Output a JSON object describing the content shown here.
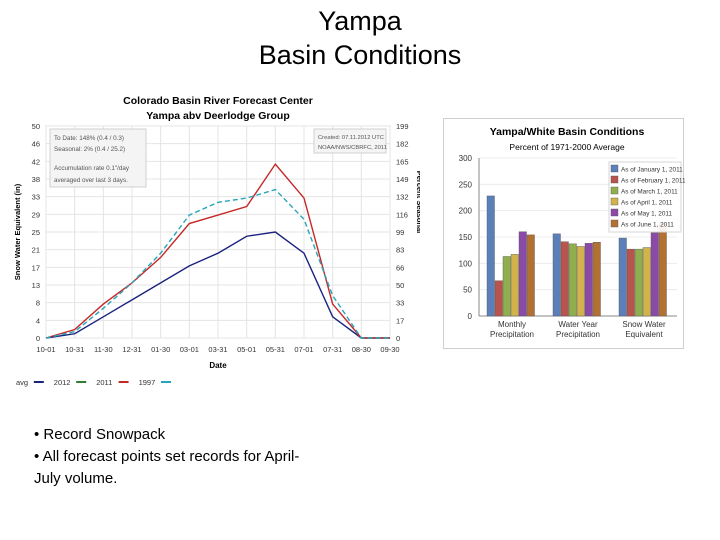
{
  "slide": {
    "title_line1": "Yampa",
    "title_line2": "Basin Conditions",
    "bullets": [
      "• Record Snowpack",
      "• All forecast points set records for April-",
      "July volume."
    ]
  },
  "chart_data": [
    {
      "type": "line",
      "title": "Colorado Basin River Forecast Center",
      "subtitle": "Yampa abv Deerlodge Group",
      "xlabel": "Date",
      "ylabel": "Snow Water Equivalent (in)",
      "y2label": "Percent Seasonal",
      "ylim": [
        0,
        50
      ],
      "y_ticks": [
        "0",
        "4",
        "8",
        "13",
        "17",
        "21",
        "25",
        "29",
        "33",
        "38",
        "42",
        "46",
        "50"
      ],
      "y2_ticks": [
        "0",
        "17",
        "33",
        "50",
        "66",
        "83",
        "99",
        "116",
        "132",
        "149",
        "165",
        "182",
        "199"
      ],
      "x_ticks": [
        "10-01",
        "10-31",
        "11-30",
        "12-31",
        "01-30",
        "03-01",
        "03-31",
        "05-01",
        "05-31",
        "07-01",
        "07-31",
        "08-30",
        "09-30"
      ],
      "info_left": [
        "To Date: 148% (0.4 / 0.3)",
        "Seasonal: 2% (0.4 / 25.2)",
        "Accumulation rate 0.1\"/day",
        "averaged over last 3 days."
      ],
      "info_right": [
        "Created: 07.11.2012 UTC",
        "NOAA/NWS/CBRFC, 2011"
      ],
      "legend": [
        "avg",
        "2012",
        "2011",
        "1997"
      ],
      "colors": {
        "avg": "#1a237e",
        "2011": "#c62828",
        "1997": "#26a6b8",
        "2012": "#2e7d32"
      },
      "x": [
        "10-01",
        "10-31",
        "11-30",
        "12-31",
        "01-30",
        "03-01",
        "03-31",
        "05-01",
        "05-31",
        "07-01",
        "07-31",
        "08-30",
        "09-30"
      ],
      "series": [
        {
          "name": "avg",
          "values": [
            0,
            1,
            5,
            9,
            13,
            17,
            20,
            24,
            25,
            20,
            5,
            0,
            0
          ]
        },
        {
          "name": "2011",
          "values": [
            0,
            2,
            8,
            13,
            19,
            27,
            29,
            31,
            41,
            33,
            8,
            0,
            0
          ]
        },
        {
          "name": "1997",
          "values": [
            0,
            1.5,
            7,
            13,
            20,
            29,
            32,
            33,
            35,
            28,
            10,
            0,
            0
          ]
        }
      ]
    },
    {
      "type": "bar",
      "title": "Yampa/White Basin Conditions",
      "subtitle": "Percent of 1971-2000 Average",
      "ylim": [
        0,
        300
      ],
      "y_ticks": [
        "0",
        "50",
        "100",
        "150",
        "200",
        "250",
        "300"
      ],
      "categories": [
        "Monthly Precipitation",
        "Water Year Precipitation",
        "Snow Water Equivalent"
      ],
      "series": [
        {
          "name": "As of January 1, 2011",
          "color": "#5b7fb8",
          "values": [
            228,
            156,
            148
          ]
        },
        {
          "name": "As of February 1, 2011",
          "color": "#b8534e",
          "values": [
            67,
            141,
            127
          ]
        },
        {
          "name": "As of March 1, 2011",
          "color": "#8faf4f",
          "values": [
            113,
            137,
            127
          ]
        },
        {
          "name": "As of April 1, 2011",
          "color": "#d2b24a",
          "values": [
            117,
            132,
            130
          ]
        },
        {
          "name": "As of May 1, 2011",
          "color": "#8a4aa8",
          "values": [
            160,
            138,
            158
          ]
        },
        {
          "name": "As of June 1, 2011",
          "color": "#b27032",
          "values": [
            154,
            140,
            175
          ]
        }
      ]
    }
  ]
}
